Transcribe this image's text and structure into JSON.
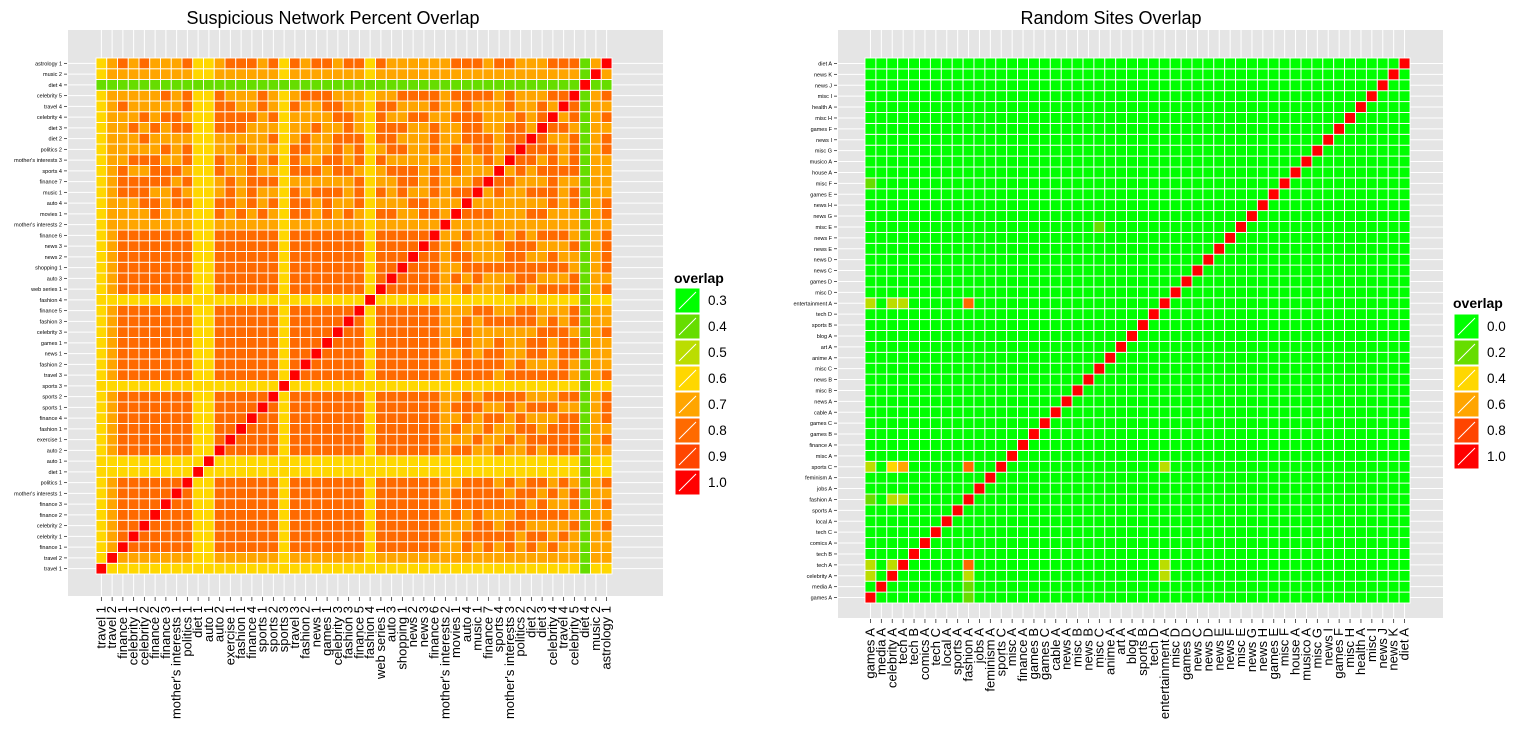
{
  "figure": {
    "colors": {
      "panel_bg": "#e5e5e5",
      "grid": "#ffffff",
      "tile_border": "#ffffff",
      "scale": [
        "#00ff00",
        "#66dd00",
        "#bbdd00",
        "#ffd700",
        "#ffa500",
        "#ff6a00",
        "#ff4500",
        "#ff0000"
      ]
    }
  },
  "chart_data": [
    {
      "type": "heatmap",
      "title": "Suspicious Network Percent Overlap",
      "legend": {
        "title": "overlap",
        "values": [
          "0.3",
          "0.4",
          "0.5",
          "0.6",
          "0.7",
          "0.8",
          "0.9",
          "1.0"
        ]
      },
      "scale_min": 0.3,
      "scale_max": 1.0,
      "categories": [
        "travel 1",
        "travel 2",
        "finance 1",
        "celebrity 1",
        "celebrity 2",
        "finance 2",
        "finance 3",
        "mother's interests 1",
        "politics 1",
        "diet 1",
        "auto 1",
        "auto 2",
        "exercise 1",
        "fashion 1",
        "finance 4",
        "sports 1",
        "sports 2",
        "sports 3",
        "travel 3",
        "fashion 2",
        "news 1",
        "games 1",
        "celebrity 3",
        "fashion 3",
        "finance 5",
        "fashion 4",
        "web series 1",
        "auto 3",
        "shopping 1",
        "news 2",
        "news 3",
        "finance 6",
        "mother's interests 2",
        "movies 1",
        "auto 4",
        "music 1",
        "finance 7",
        "sports 4",
        "mother's interests 3",
        "politics 2",
        "diet 2",
        "diet 3",
        "celebrity 4",
        "travel 4",
        "celebrity 5",
        "diet 4",
        "music 2",
        "astrology 1"
      ],
      "row_base": [
        0.62,
        0.68,
        0.78,
        0.8,
        0.8,
        0.8,
        0.8,
        0.8,
        0.8,
        0.62,
        0.62,
        0.8,
        0.8,
        0.8,
        0.8,
        0.8,
        0.8,
        0.62,
        0.8,
        0.8,
        0.8,
        0.8,
        0.8,
        0.8,
        0.8,
        0.58,
        0.8,
        0.8,
        0.8,
        0.8,
        0.8,
        0.85,
        0.7,
        0.75,
        0.75,
        0.75,
        0.75,
        0.75,
        0.75,
        0.75,
        0.75,
        0.75,
        0.75,
        0.75,
        0.75,
        0.4,
        0.72,
        0.75
      ]
    },
    {
      "type": "heatmap",
      "title": "Random Sites Overlap",
      "legend": {
        "title": "overlap",
        "values": [
          "0.0",
          "0.2",
          "0.4",
          "0.6",
          "0.8",
          "1.0"
        ]
      },
      "scale_min": 0.0,
      "scale_max": 1.0,
      "categories": [
        "games A",
        "media A",
        "celebrity A",
        "tech A",
        "tech B",
        "comics A",
        "tech C",
        "local A",
        "sports A",
        "fashion A",
        "jobs A",
        "feminism A",
        "sports C",
        "misc A",
        "finance A",
        "games B",
        "games C",
        "cable A",
        "news A",
        "misc B",
        "news B",
        "misc C",
        "anime A",
        "art A",
        "blog A",
        "sports B",
        "tech D",
        "entertainment A",
        "misc D",
        "games D",
        "news C",
        "news D",
        "news E",
        "news F",
        "misc E",
        "news G",
        "news H",
        "games E",
        "misc F",
        "house A",
        "musico A",
        "misc G",
        "news I",
        "games F",
        "misc H",
        "health A",
        "misc I",
        "news J",
        "news K",
        "diet A"
      ],
      "highlights": [
        {
          "row": 3,
          "col": 0,
          "value": 0.3
        },
        {
          "row": 3,
          "col": 2,
          "value": 0.35
        },
        {
          "row": 3,
          "col": 9,
          "value": 0.75
        },
        {
          "row": 3,
          "col": 27,
          "value": 0.35
        },
        {
          "row": 2,
          "col": 0,
          "value": 0.25
        },
        {
          "row": 2,
          "col": 9,
          "value": 0.3
        },
        {
          "row": 2,
          "col": 27,
          "value": 0.25
        },
        {
          "row": 1,
          "col": 9,
          "value": 0.15
        },
        {
          "row": 0,
          "col": 9,
          "value": 0.2
        },
        {
          "row": 9,
          "col": 0,
          "value": 0.2
        },
        {
          "row": 9,
          "col": 2,
          "value": 0.3
        },
        {
          "row": 9,
          "col": 3,
          "value": 0.3
        },
        {
          "row": 12,
          "col": 0,
          "value": 0.3
        },
        {
          "row": 12,
          "col": 2,
          "value": 0.4
        },
        {
          "row": 12,
          "col": 3,
          "value": 0.5
        },
        {
          "row": 12,
          "col": 9,
          "value": 0.75
        },
        {
          "row": 12,
          "col": 27,
          "value": 0.3
        },
        {
          "row": 27,
          "col": 0,
          "value": 0.25
        },
        {
          "row": 27,
          "col": 2,
          "value": 0.35
        },
        {
          "row": 27,
          "col": 3,
          "value": 0.35
        },
        {
          "row": 27,
          "col": 9,
          "value": 0.75
        },
        {
          "row": 34,
          "col": 21,
          "value": 0.2
        },
        {
          "row": 38,
          "col": 0,
          "value": 0.15
        }
      ]
    }
  ]
}
